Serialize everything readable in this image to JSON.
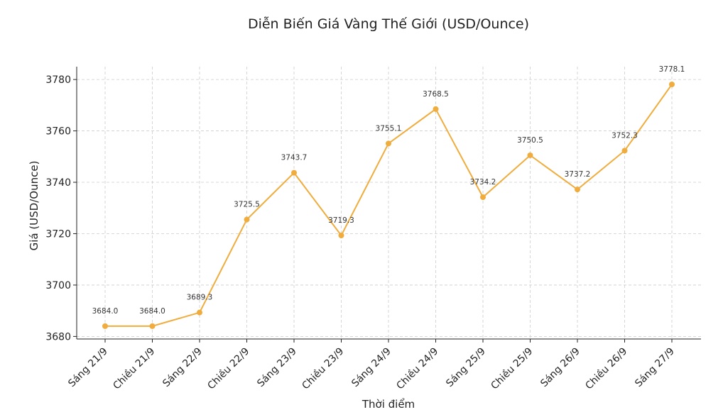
{
  "chart_data": {
    "type": "line",
    "title": "Diễn Biến Giá Vàng Thế Giới (USD/Ounce)",
    "xlabel": "Thời điểm",
    "ylabel": "Giá (USD/Ounce)",
    "categories": [
      "Sáng 21/9",
      "Chiều 21/9",
      "Sáng 22/9",
      "Chiều 22/9",
      "Sáng 23/9",
      "Chiều 23/9",
      "Sáng 24/9",
      "Chiều 24/9",
      "Sáng 25/9",
      "Chiều 25/9",
      "Sáng 26/9",
      "Chiều 26/9",
      "Sáng 27/9"
    ],
    "values": [
      3684.0,
      3684.0,
      3689.3,
      3725.5,
      3743.7,
      3719.3,
      3755.1,
      3768.5,
      3734.2,
      3750.5,
      3737.2,
      3752.3,
      3778.1
    ],
    "data_labels": [
      "3684.0",
      "3684.0",
      "3689.3",
      "3725.5",
      "3743.7",
      "3719.3",
      "3755.1",
      "3768.5",
      "3734.2",
      "3750.5",
      "3737.2",
      "3752.3",
      "3778.1"
    ],
    "yticks": [
      "3680",
      "3700",
      "3720",
      "3740",
      "3760",
      "3780"
    ],
    "ytick_values": [
      3680,
      3700,
      3720,
      3740,
      3760,
      3780
    ],
    "ylim": [
      3679,
      3785
    ],
    "grid": true,
    "line_color": "#f0ad3e"
  }
}
